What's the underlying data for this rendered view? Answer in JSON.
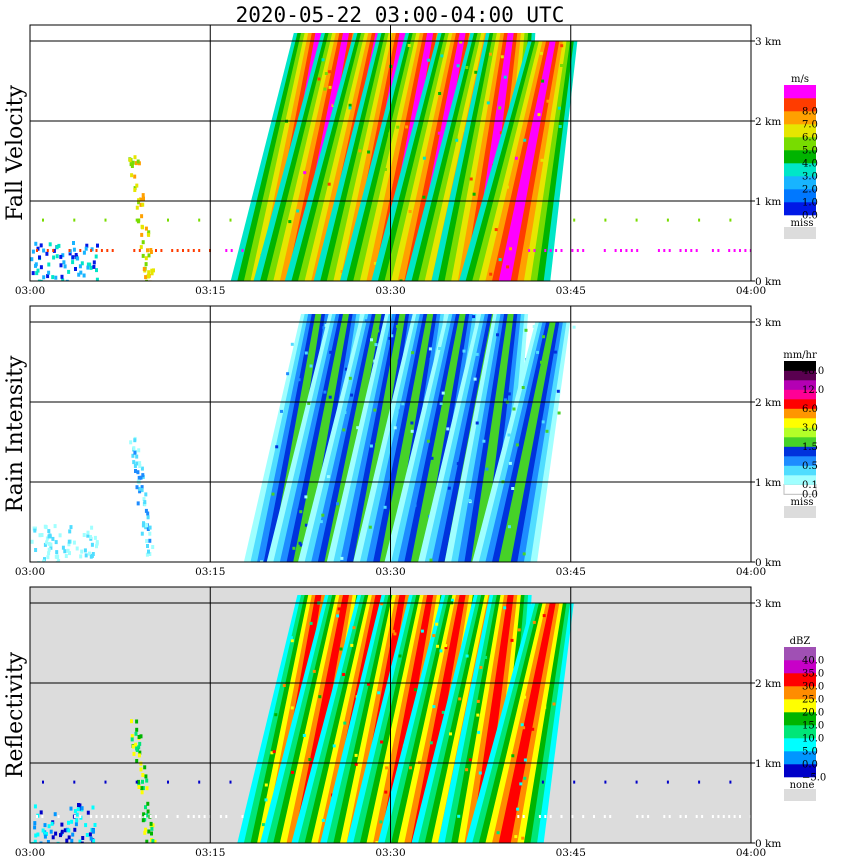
{
  "chart_data": {
    "type": "heatmap",
    "title": "2020-05-22   03:00-04:00 UTC",
    "x_ticks": [
      "03:00",
      "03:15",
      "03:30",
      "03:45",
      "04:00"
    ],
    "y_ticks": [
      "0 km",
      "1 km",
      "2 km",
      "3 km"
    ],
    "xlim": [
      "03:00",
      "04:00"
    ],
    "ylim_km": [
      0,
      3.2
    ],
    "grid": true,
    "panels": [
      {
        "id": "fall-velocity",
        "title": "Fall Velocity",
        "unit": "m/s",
        "missing_label": "miss",
        "missing_color": "#dcdcdc",
        "colorbar": [
          {
            "label": "0.0",
            "color": "#0018e6"
          },
          {
            "label": "1.0",
            "color": "#0078ff"
          },
          {
            "label": "2.0",
            "color": "#18b4ff"
          },
          {
            "label": "3.0",
            "color": "#00e6c8"
          },
          {
            "label": "4.0",
            "color": "#00b400"
          },
          {
            "label": "5.0",
            "color": "#78dc00"
          },
          {
            "label": "6.0",
            "color": "#e6e600"
          },
          {
            "label": "7.0",
            "color": "#ffa000"
          },
          {
            "label": "8.0",
            "color": "#ff3c00"
          },
          {
            "label": "",
            "color": "#ff00ff"
          }
        ]
      },
      {
        "id": "rain-intensity",
        "title": "Rain Intensity",
        "unit": "mm/hr",
        "missing_label": "miss",
        "missing_color": "#dcdcdc",
        "colorbar": [
          {
            "label": "0.0",
            "color": "#ffffff"
          },
          {
            "label": "0.1",
            "color": "#a0ffff"
          },
          {
            "label": "",
            "color": "#50ddff"
          },
          {
            "label": "0.5",
            "color": "#1e8cff"
          },
          {
            "label": "",
            "color": "#0032dc"
          },
          {
            "label": "1.5",
            "color": "#46d228"
          },
          {
            "label": "",
            "color": "#b4ff28"
          },
          {
            "label": "3.0",
            "color": "#ffff00"
          },
          {
            "label": "",
            "color": "#ff9600"
          },
          {
            "label": "6.0",
            "color": "#ff0000"
          },
          {
            "label": "",
            "color": "#ff0096"
          },
          {
            "label": "12.0",
            "color": "#b400b4"
          },
          {
            "label": "",
            "color": "#5a0050"
          },
          {
            "label": "48.0",
            "color": "#000000"
          }
        ]
      },
      {
        "id": "reflectivity",
        "title": "Reflectivity",
        "unit": "dBZ",
        "missing_label": "none",
        "missing_color": "#dcdcdc",
        "colorbar": [
          {
            "label": "−5.0",
            "color": "#0000c8"
          },
          {
            "label": "0.0",
            "color": "#0096ff"
          },
          {
            "label": "5.0",
            "color": "#00ffff"
          },
          {
            "label": "10.0",
            "color": "#00e678"
          },
          {
            "label": "15.0",
            "color": "#00b400"
          },
          {
            "label": "20.0",
            "color": "#ffff00"
          },
          {
            "label": "25.0",
            "color": "#ff8c00"
          },
          {
            "label": "30.0",
            "color": "#ff0000"
          },
          {
            "label": "35.0",
            "color": "#c800c8"
          },
          {
            "label": "40.0",
            "color": "#a050b4"
          }
        ]
      }
    ],
    "fall_streaks": [
      {
        "t_top": 24.0,
        "t_bottom": 20.5,
        "z_top": 3.1
      },
      {
        "t_top": 26.3,
        "t_bottom": 22.4,
        "z_top": 3.1
      },
      {
        "t_top": 29.0,
        "t_bottom": 25.0,
        "z_top": 3.1
      },
      {
        "t_top": 31.0,
        "t_bottom": 27.4,
        "z_top": 3.1
      },
      {
        "t_top": 33.3,
        "t_bottom": 29.6,
        "z_top": 3.1
      },
      {
        "t_top": 36.0,
        "t_bottom": 32.2,
        "z_top": 3.1
      },
      {
        "t_top": 38.7,
        "t_bottom": 35.0,
        "z_top": 3.1
      },
      {
        "t_top": 40.0,
        "t_bottom": 37.2,
        "z_top": 3.1
      },
      {
        "t_top": 43.5,
        "t_bottom": 39.5,
        "z_top": 3.0
      }
    ]
  }
}
